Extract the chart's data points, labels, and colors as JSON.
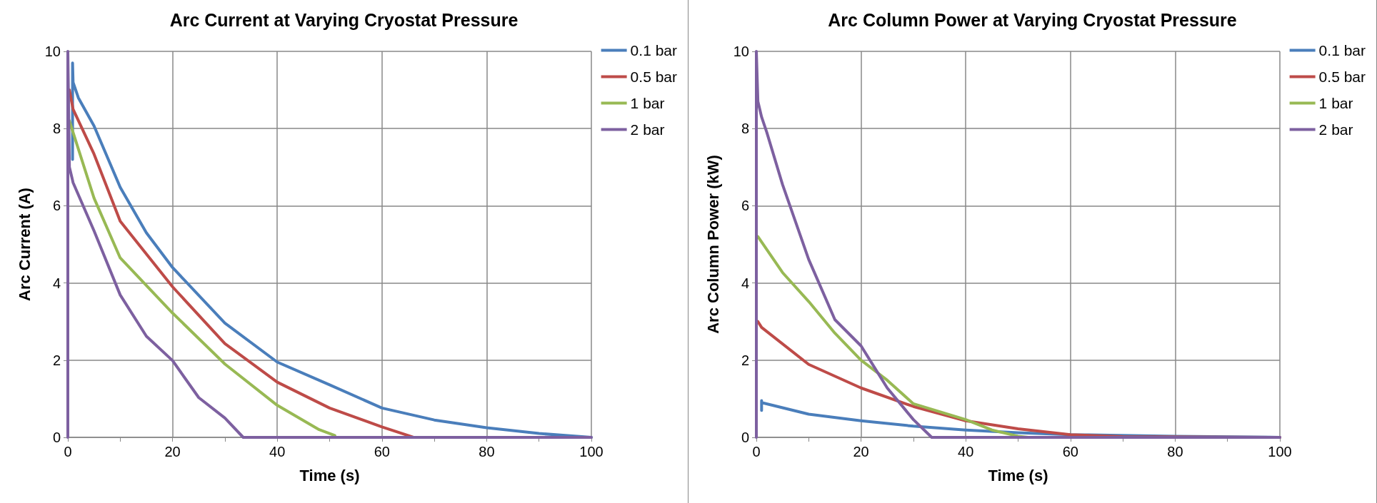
{
  "chart_data": [
    {
      "type": "line",
      "title": "Arc Current at Varying Cryostat Pressure",
      "xlabel": "Time (s)",
      "ylabel": "Arc Current (A)",
      "xlim": [
        0,
        100
      ],
      "xticks": [
        0,
        {
          "value": 10,
          "label": null
        },
        20,
        {
          "value": 30,
          "label": null
        },
        40,
        {
          "value": 50,
          "label": null
        },
        60,
        {
          "value": 70,
          "label": null
        },
        80,
        {
          "value": 90,
          "label": null
        },
        100
      ],
      "ylim": [
        0,
        10
      ],
      "yticks": [
        0,
        2,
        4,
        6,
        8,
        10
      ],
      "grid": true,
      "legend": "top right",
      "marker": "none",
      "line_style": "solid",
      "series": [
        {
          "name": "0.1 bar",
          "color": "#4a7ebb",
          "x": [
            0.9,
            0.9,
            1,
            2,
            5,
            10,
            15,
            20,
            30,
            40,
            50,
            60,
            70,
            80,
            90,
            100
          ],
          "values": [
            7.2,
            9.7,
            9.2,
            8.8,
            8.07,
            6.48,
            5.3,
            4.4,
            2.96,
            1.95,
            1.36,
            0.76,
            0.45,
            0.25,
            0.1,
            0
          ]
        },
        {
          "name": "0.5 bar",
          "color": "#be4b48",
          "x": [
            0.3,
            1,
            5,
            10,
            20,
            30,
            40,
            50,
            60,
            65,
            66
          ],
          "values": [
            9.0,
            8.5,
            7.34,
            5.6,
            3.9,
            2.43,
            1.43,
            0.76,
            0.27,
            0.05,
            0
          ]
        },
        {
          "name": "1 bar",
          "color": "#98b954",
          "x": [
            0.3,
            1,
            5,
            10,
            20,
            30,
            40,
            48,
            51
          ],
          "values": [
            8.2,
            7.9,
            6.2,
            4.65,
            3.22,
            1.9,
            0.83,
            0.2,
            0.05
          ]
        },
        {
          "name": "2 bar",
          "color": "#7d60a0",
          "x": [
            0,
            0,
            0.3,
            1,
            5,
            10,
            15,
            20,
            25,
            30,
            33.5,
            100
          ],
          "values": [
            0,
            10,
            7.0,
            6.6,
            5.35,
            3.69,
            2.62,
            1.99,
            1.03,
            0.5,
            0,
            0
          ]
        }
      ]
    },
    {
      "type": "line",
      "title": "Arc Column Power at Varying Cryostat Pressure",
      "xlabel": "Time (s)",
      "ylabel": "Arc Column Power (kW)",
      "xlim": [
        0,
        100
      ],
      "xticks": [
        0,
        {
          "value": 10,
          "label": null
        },
        20,
        {
          "value": 30,
          "label": null
        },
        40,
        {
          "value": 50,
          "label": null
        },
        60,
        {
          "value": 70,
          "label": null
        },
        80,
        {
          "value": 90,
          "label": null
        },
        100
      ],
      "ylim": [
        0,
        10
      ],
      "yticks": [
        0,
        2,
        4,
        6,
        8,
        10
      ],
      "grid": true,
      "legend": "top right",
      "marker": "none",
      "line_style": "solid",
      "series": [
        {
          "name": "0.1 bar",
          "color": "#4a7ebb",
          "x": [
            1,
            1,
            1,
            10,
            20,
            30,
            40,
            50,
            60,
            80,
            100
          ],
          "values": [
            0.7,
            0.95,
            0.9,
            0.6,
            0.43,
            0.29,
            0.19,
            0.12,
            0.07,
            0.03,
            0
          ]
        },
        {
          "name": "0.5 bar",
          "color": "#be4b48",
          "x": [
            0.3,
            1,
            10,
            20,
            30,
            40,
            50,
            60,
            70,
            100
          ],
          "values": [
            3.0,
            2.85,
            1.89,
            1.28,
            0.8,
            0.43,
            0.22,
            0.07,
            0.02,
            0
          ]
        },
        {
          "name": "1 bar",
          "color": "#98b954",
          "x": [
            0.3,
            5,
            10,
            15,
            20,
            25,
            30,
            40,
            45,
            50,
            52
          ],
          "values": [
            5.2,
            4.27,
            3.52,
            2.7,
            2.0,
            1.48,
            0.87,
            0.46,
            0.19,
            0.03,
            0
          ]
        },
        {
          "name": "2 bar",
          "color": "#7d60a0",
          "x": [
            0,
            0,
            0.3,
            1,
            2,
            5,
            10,
            15,
            20,
            25,
            30,
            33.5,
            100
          ],
          "values": [
            0,
            10,
            8.7,
            8.3,
            7.9,
            6.55,
            4.61,
            3.05,
            2.37,
            1.28,
            0.46,
            0,
            0
          ]
        }
      ]
    }
  ]
}
